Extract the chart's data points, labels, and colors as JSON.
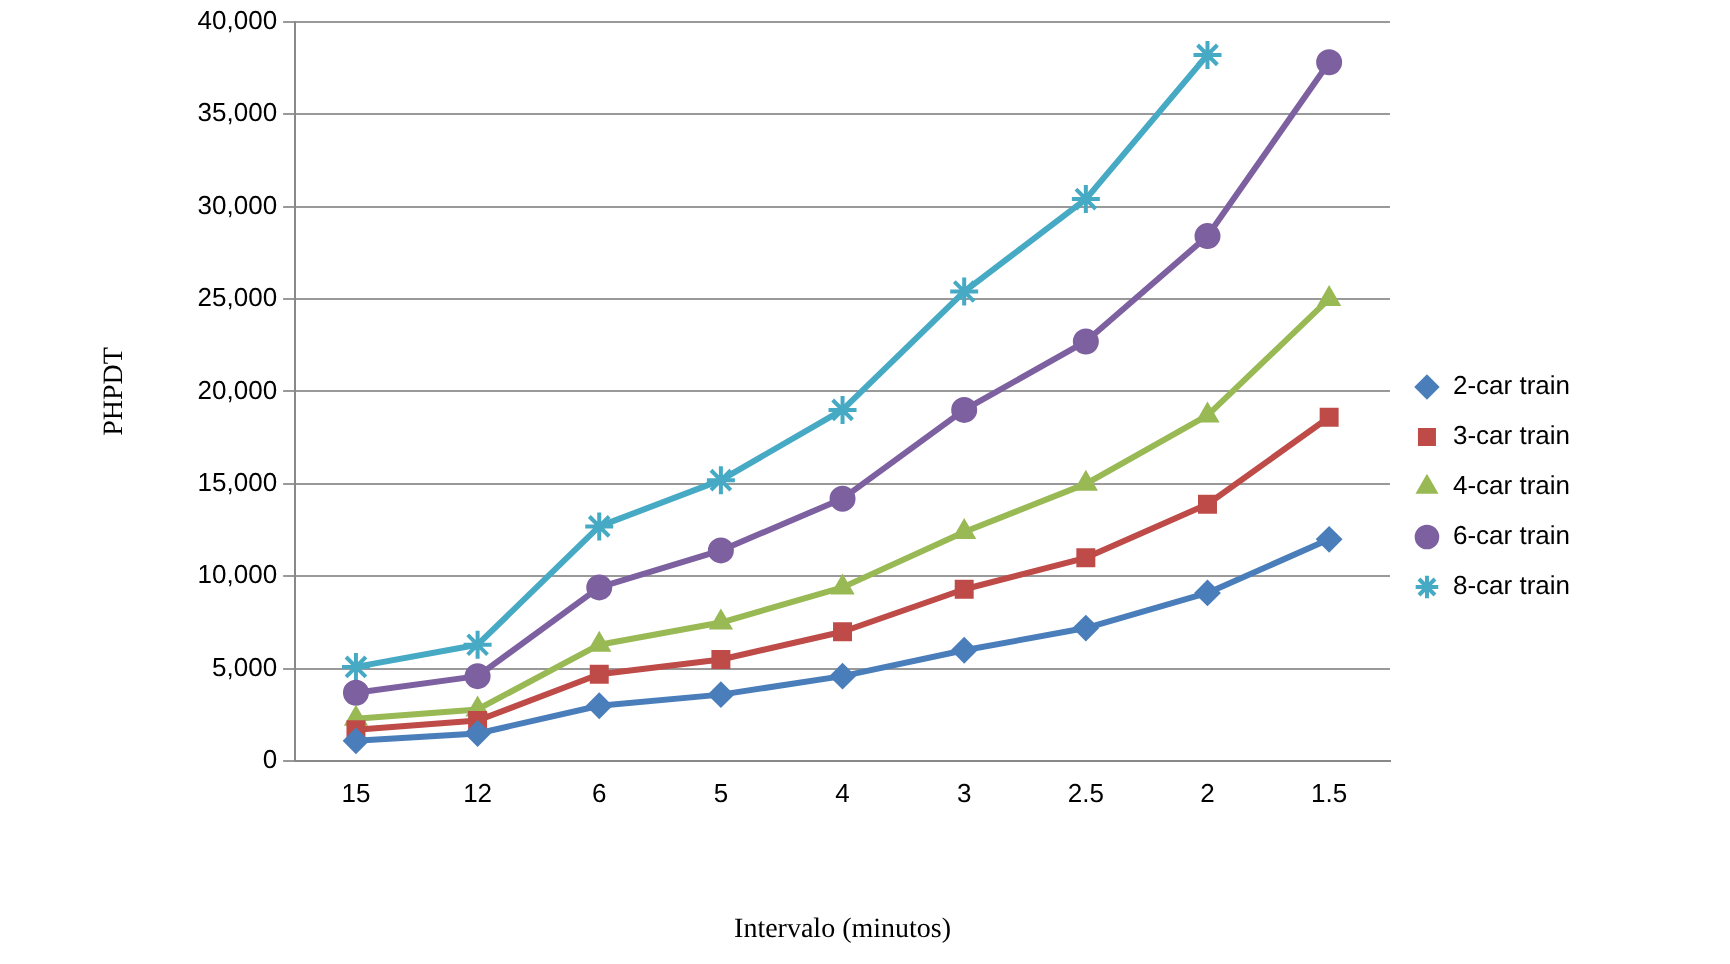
{
  "chart_data": {
    "type": "line",
    "xlabel": "Intervalo (minutos)",
    "ylabel": "PHPDT",
    "categories": [
      "15",
      "12",
      "6",
      "5",
      "4",
      "3",
      "2.5",
      "2",
      "1.5"
    ],
    "series": [
      {
        "name": "2-car train",
        "color": "#4a7ebb",
        "marker": "diamond",
        "values": [
          1100,
          1500,
          3000,
          3600,
          4600,
          6000,
          7200,
          9100,
          12000
        ]
      },
      {
        "name": "3-car train",
        "color": "#be4b48",
        "marker": "square",
        "values": [
          1700,
          2200,
          4700,
          5500,
          7000,
          9300,
          11000,
          13900,
          18600
        ]
      },
      {
        "name": "4-car train",
        "color": "#98b954",
        "marker": "triangle",
        "values": [
          2300,
          2800,
          6300,
          7500,
          9400,
          12400,
          15000,
          18700,
          25000
        ]
      },
      {
        "name": "6-car train",
        "color": "#7d60a0",
        "marker": "circle",
        "values": [
          3700,
          4600,
          9400,
          11400,
          14200,
          19000,
          22700,
          28400,
          37800
        ]
      },
      {
        "name": "8-car train",
        "color": "#46aac5",
        "marker": "cross",
        "values": [
          5100,
          6300,
          12700,
          15200,
          19000,
          25400,
          30400,
          38200,
          null
        ]
      }
    ],
    "ylim": [
      0,
      40000
    ],
    "yticks": [
      {
        "value": 0,
        "label": "0"
      },
      {
        "value": 5000,
        "label": "5,000"
      },
      {
        "value": 10000,
        "label": "10,000"
      },
      {
        "value": 15000,
        "label": "15,000"
      },
      {
        "value": 20000,
        "label": "20,000"
      },
      {
        "value": 25000,
        "label": "25,000"
      },
      {
        "value": 30000,
        "label": "30,000"
      },
      {
        "value": 35000,
        "label": "35,000"
      },
      {
        "value": 40000,
        "label": "40,000"
      }
    ],
    "grid": "y",
    "legend": "right",
    "line_style": "solid"
  }
}
